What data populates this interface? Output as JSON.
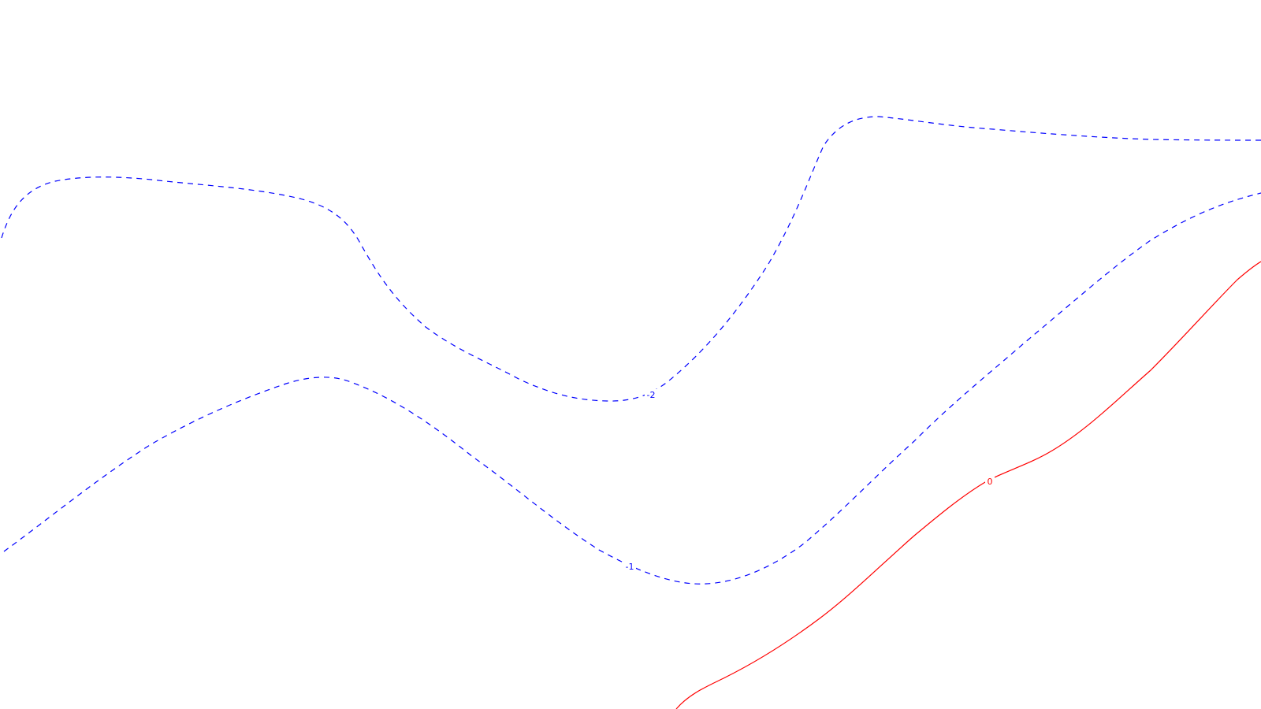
{
  "contours": [
    {
      "id": "contour-minus-2",
      "label": "-2",
      "color": "#0000ff",
      "style": "dashed"
    },
    {
      "id": "contour-minus-1",
      "label": "-1",
      "color": "#0000ff",
      "style": "dashed"
    },
    {
      "id": "contour-zero",
      "label": "0",
      "color": "#ff0000",
      "style": "solid"
    }
  ]
}
